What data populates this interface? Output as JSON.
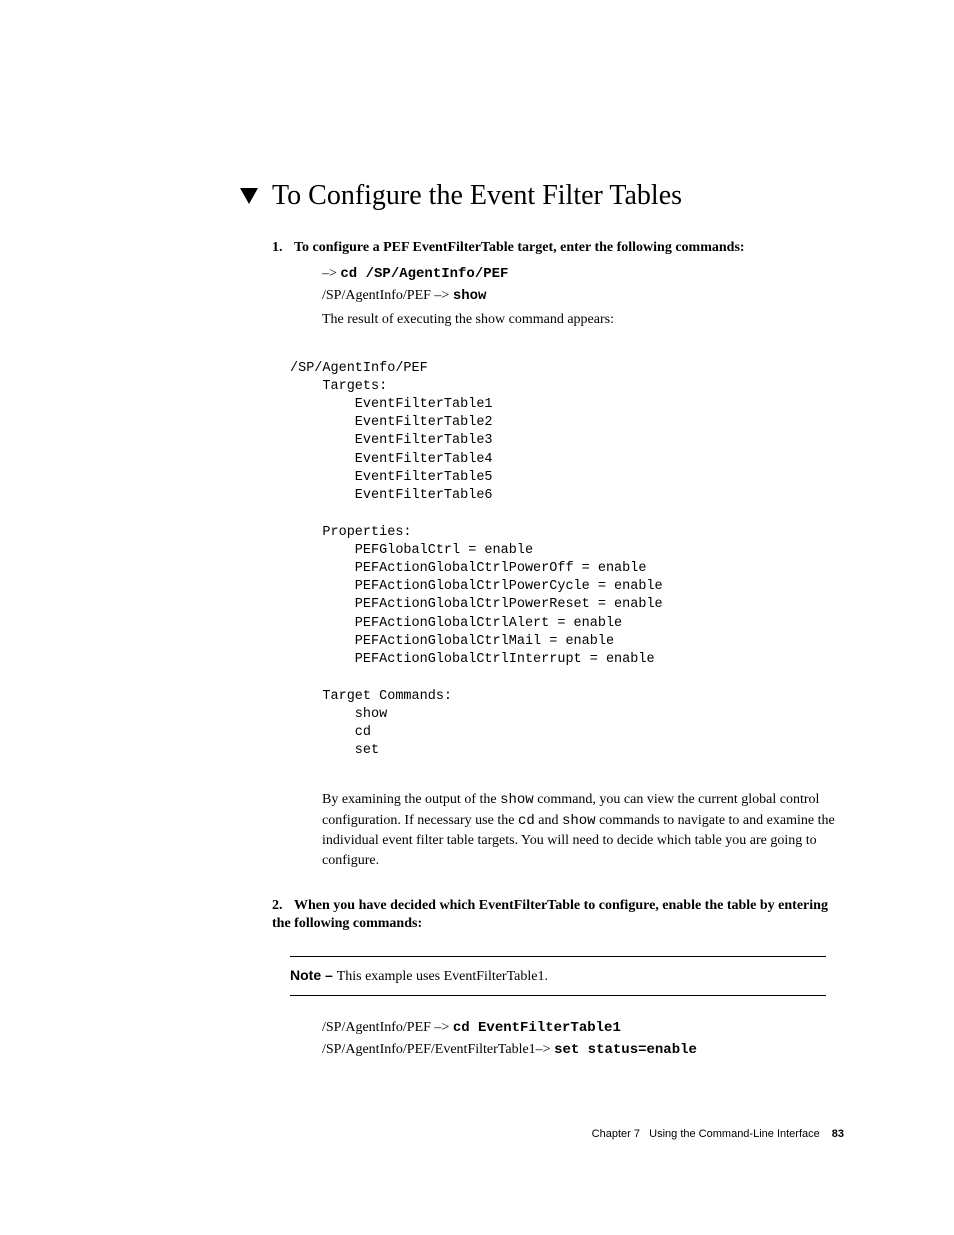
{
  "heading": "To Configure the Event Filter Tables",
  "list": {
    "item1": {
      "number": "1.",
      "text": "To configure a PEF EventFilterTable target, enter the following commands:",
      "cmd1_prefix": "–> ",
      "cmd1_bold": "cd /SP/AgentInfo/PEF",
      "cmd2_prefix": "/SP/AgentInfo/PEF –> ",
      "cmd2_bold": "show",
      "result_text": "The result of executing the show command appears:"
    },
    "item2": {
      "number": "2.",
      "text": "When you have decided which EventFilterTable to configure, enable the table by entering the following commands:",
      "cmd1_prefix": "/SP/AgentInfo/PEF –> ",
      "cmd1_bold": "cd EventFilterTable1",
      "cmd2_prefix": "/SP/AgentInfo/PEF/EventFilterTable1–> ",
      "cmd2_bold": "set status=enable"
    }
  },
  "code_output": "/SP/AgentInfo/PEF\n    Targets:\n        EventFilterTable1\n        EventFilterTable2\n        EventFilterTable3\n        EventFilterTable4\n        EventFilterTable5\n        EventFilterTable6\n\n    Properties:\n        PEFGlobalCtrl = enable\n        PEFActionGlobalCtrlPowerOff = enable\n        PEFActionGlobalCtrlPowerCycle = enable\n        PEFActionGlobalCtrlPowerReset = enable\n        PEFActionGlobalCtrlAlert = enable\n        PEFActionGlobalCtrlMail = enable\n        PEFActionGlobalCtrlInterrupt = enable\n\n    Target Commands:\n        show\n        cd\n        set",
  "paragraph": {
    "p1a": "By examining the output of the ",
    "p1b": "show",
    "p1c": " command, you can view the current global control configuration. If necessary use the ",
    "p1d": "cd",
    "p1e": " and ",
    "p1f": "show",
    "p1g": " commands to navigate to and examine the individual event filter table targets. You will need to decide which table you are going to configure."
  },
  "note": {
    "label": "Note – ",
    "text": "This example uses EventFilterTable1."
  },
  "footer": {
    "chapter": "Chapter 7",
    "title": "Using the Command-Line Interface",
    "page": "83"
  }
}
